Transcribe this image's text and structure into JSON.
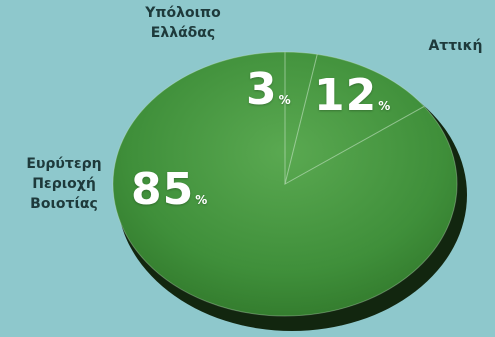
{
  "chart_data": {
    "type": "pie",
    "categories": [
      "Ευρύτερη Περιοχή Βοιοτίας",
      "Υπόλοιπο Ελλάδας",
      "Αττική"
    ],
    "values": [
      85,
      3,
      12
    ],
    "value_labels": [
      "85",
      "3",
      "12"
    ],
    "unit": "%",
    "labels": {
      "boeotia": "Ευρύτερη\nΠεριοχή\nΒοιοτίας",
      "rest_of_greece": "Υπόλοιπο\nΕλλάδας",
      "attica": "Αττική"
    },
    "title": "",
    "legend": "none",
    "colors": {
      "background": "#8ec8cc",
      "pie_face": "#3f8f3a",
      "pie_highlight": "#59a84f",
      "pie_edge": "#1d3c17",
      "label_text": "#1e3a3b",
      "value_text": "#ffffff"
    }
  }
}
